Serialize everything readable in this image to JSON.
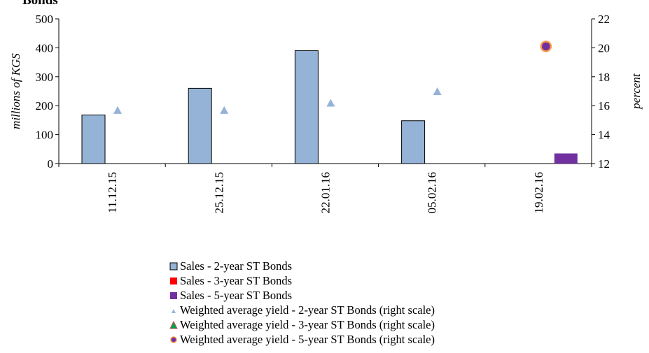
{
  "chart_data": {
    "type": "bar",
    "title": "Bonds",
    "ylabel": "millions of KGS",
    "y2label": "percent",
    "ylim": [
      0,
      500
    ],
    "y2lim": [
      12,
      22
    ],
    "yticks": [
      "0",
      "100",
      "200",
      "300",
      "400",
      "500"
    ],
    "y2ticks": [
      "12",
      "14",
      "16",
      "18",
      "20",
      "22"
    ],
    "categories": [
      "11.12.15",
      "25.12.15",
      "22.01.16",
      "05.02.16",
      "19.02.16"
    ],
    "series": [
      {
        "name": "Sales - 2-year ST Bonds",
        "kind": "bar",
        "axis": "left",
        "color": "#95b3d7",
        "values": [
          168,
          260,
          390,
          148,
          null
        ]
      },
      {
        "name": "Sales - 3-year ST Bonds",
        "kind": "bar",
        "axis": "left",
        "color": "#ff0000",
        "values": [
          null,
          null,
          null,
          null,
          null
        ]
      },
      {
        "name": "Sales - 5-year ST Bonds",
        "kind": "bar",
        "axis": "left",
        "color": "#7030a0",
        "values": [
          null,
          null,
          null,
          null,
          35
        ]
      },
      {
        "name": "Weighted average yield - 2-year ST Bonds (right scale)",
        "kind": "marker",
        "marker": "triangle",
        "axis": "right",
        "color": "#95b3d7",
        "values": [
          15.7,
          15.7,
          16.2,
          17.0,
          null
        ]
      },
      {
        "name": "Weighted average yield - 3-year ST Bonds (right scale)",
        "kind": "marker",
        "marker": "triangle",
        "axis": "right",
        "color": "#00a050",
        "edge": "#c0504d",
        "values": [
          null,
          null,
          null,
          null,
          null
        ]
      },
      {
        "name": "Weighted average yield - 5-year ST Bonds (right scale)",
        "kind": "marker",
        "marker": "circle",
        "axis": "right",
        "color": "#7030a0",
        "edge": "#f79646",
        "values": [
          null,
          null,
          null,
          null,
          20.1
        ]
      }
    ],
    "grid": false,
    "legend_position": "bottom"
  }
}
